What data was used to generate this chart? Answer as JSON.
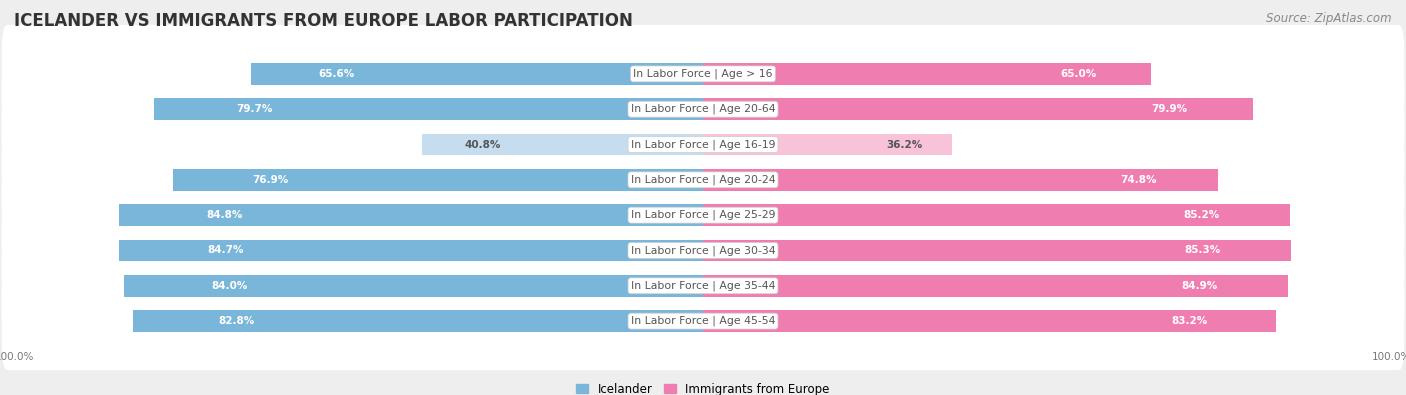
{
  "title": "ICELANDER VS IMMIGRANTS FROM EUROPE LABOR PARTICIPATION",
  "source": "Source: ZipAtlas.com",
  "categories": [
    "In Labor Force | Age > 16",
    "In Labor Force | Age 20-64",
    "In Labor Force | Age 16-19",
    "In Labor Force | Age 20-24",
    "In Labor Force | Age 25-29",
    "In Labor Force | Age 30-34",
    "In Labor Force | Age 35-44",
    "In Labor Force | Age 45-54"
  ],
  "icelander_values": [
    65.6,
    79.7,
    40.8,
    76.9,
    84.8,
    84.7,
    84.0,
    82.8
  ],
  "immigrant_values": [
    65.0,
    79.9,
    36.2,
    74.8,
    85.2,
    85.3,
    84.9,
    83.2
  ],
  "icelander_color": "#7ab6d9",
  "icelander_color_light": "#c5ddef",
  "immigrant_color": "#f07db0",
  "immigrant_color_light": "#f8c2d8",
  "bg_color": "#eeeeee",
  "row_bg_color": "#ffffff",
  "text_color_dark": "#555555",
  "text_color_value": "#ffffff",
  "text_color_light_value": "#888888",
  "max_val": 100.0,
  "bar_height": 0.62,
  "title_fontsize": 12,
  "source_fontsize": 8.5,
  "label_fontsize": 7.8,
  "value_fontsize": 7.5,
  "legend_fontsize": 8.5,
  "axis_label_fontsize": 7.5,
  "legend_label_icelander": "Icelander",
  "legend_label_immigrant": "Immigrants from Europe"
}
